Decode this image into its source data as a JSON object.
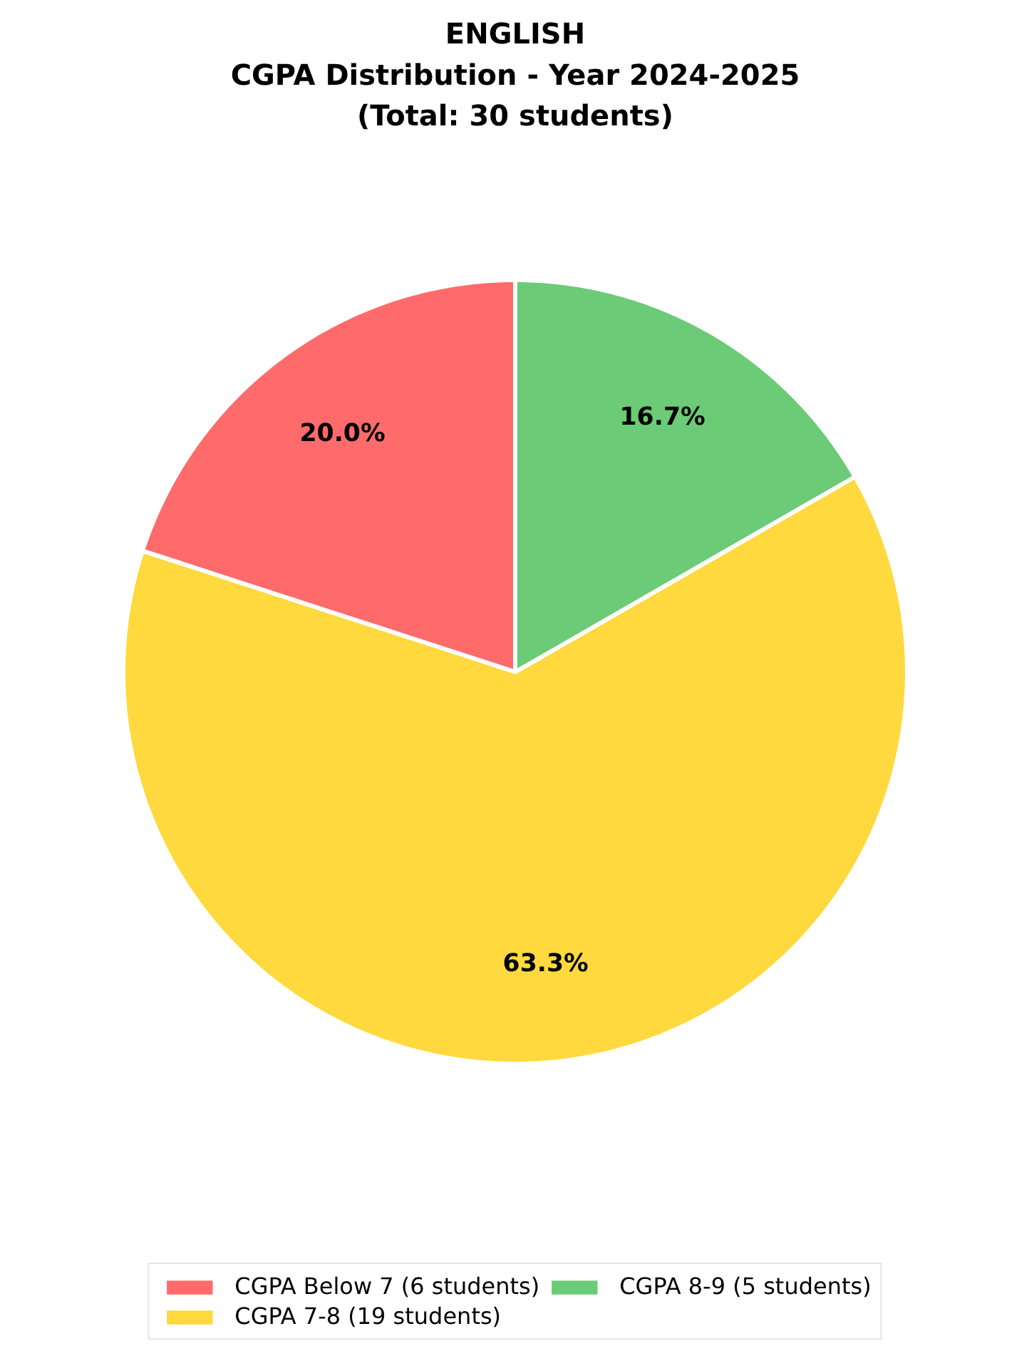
{
  "chart_data": {
    "type": "pie",
    "title": "ENGLISH\nCGPA Distribution - Year 2024-2025\n(Total: 30 students)",
    "categories": [
      "CGPA Below 7 (6 students)",
      "CGPA 7-8 (19 students)",
      "CGPA 8-9 (5 students)"
    ],
    "values": [
      20.0,
      63.3,
      16.7
    ],
    "colors": [
      "#ff6b6b",
      "#ffd93d",
      "#6bcb77"
    ],
    "value_labels": [
      "20.0%",
      "63.3%",
      "16.7%"
    ],
    "legend": "bottom"
  }
}
